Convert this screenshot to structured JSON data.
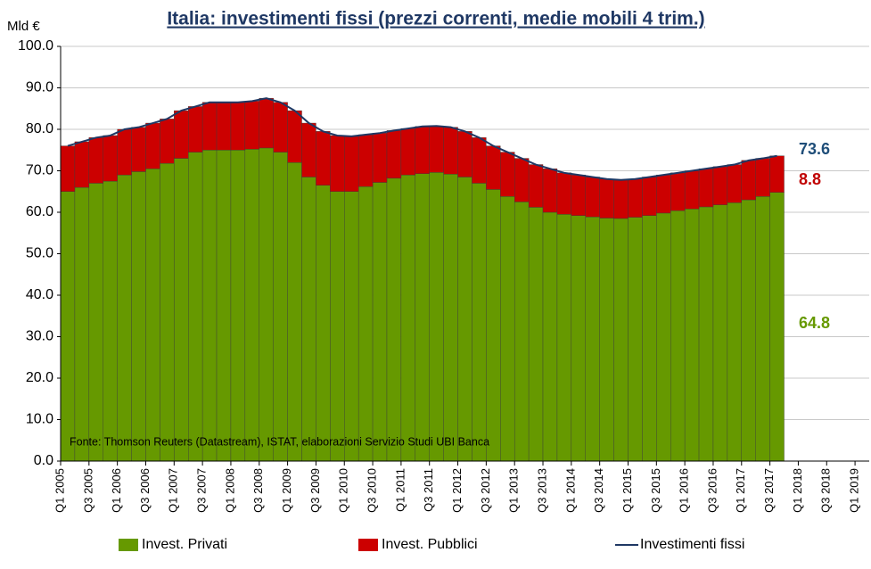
{
  "chart_data": {
    "type": "bar",
    "stacked": true,
    "title": "Italia: investimenti fissi (prezzi correnti, medie mobili 4 trim.)",
    "y_axis_label": "Mld €",
    "source": "Fonte: Thomson Reuters (Datastream), ISTAT,  elaborazioni Servizio Studi UBI Banca",
    "categories": [
      "Q1 2005",
      null,
      "Q3 2005",
      null,
      "Q1 2006",
      null,
      "Q3 2006",
      null,
      "Q1 2007",
      null,
      "Q3 2007",
      null,
      "Q1 2008",
      null,
      "Q3 2008",
      null,
      "Q1 2009",
      null,
      "Q3 2009",
      null,
      "Q1 2010",
      null,
      "Q3 2010",
      null,
      "Q1 2011",
      null,
      "Q3 2011",
      null,
      "Q1 2012",
      null,
      "Q3 2012",
      null,
      "Q1 2013",
      null,
      "Q3 2013",
      null,
      "Q1 2014",
      null,
      "Q3 2014",
      null,
      "Q1 2015",
      null,
      "Q3 2015",
      null,
      "Q1 2016",
      null,
      "Q3 2016",
      null,
      "Q1 2017",
      null,
      "Q3 2017",
      null,
      "Q1 2018",
      null,
      "Q3 2018",
      null,
      "Q1 2019"
    ],
    "series": [
      {
        "name": "Invest. Privati",
        "type": "bar",
        "color": "#669900",
        "values": [
          65,
          66,
          67,
          67.5,
          69,
          69.8,
          70.5,
          71.8,
          73,
          74.5,
          75,
          75,
          75,
          75.2,
          75.5,
          74.5,
          72,
          68.5,
          66.5,
          65,
          65,
          66.2,
          67.2,
          68.2,
          69,
          69.3,
          69.6,
          69.2,
          68.5,
          67,
          65.5,
          63.8,
          62.5,
          61.2,
          60,
          59.5,
          59.2,
          58.9,
          58.6,
          58.5,
          58.8,
          59.2,
          59.8,
          60.4,
          60.8,
          61.3,
          61.8,
          62.3,
          63,
          63.8,
          64.8,
          null,
          null,
          null,
          null,
          null,
          null
        ]
      },
      {
        "name": "Invest. Pubblici",
        "type": "bar",
        "color": "#cc0000",
        "values": [
          11,
          11,
          11,
          11,
          11,
          10.7,
          11,
          10.7,
          11.5,
          11,
          11.5,
          11.5,
          11.5,
          11.6,
          12,
          12,
          12.5,
          13,
          13,
          13.5,
          13.3,
          12.5,
          11.9,
          11.5,
          11.2,
          11.4,
          11.2,
          11.3,
          11,
          11,
          10.5,
          10.7,
          10.5,
          10.3,
          10.5,
          10,
          9.8,
          9.6,
          9.4,
          9.3,
          9.2,
          9.3,
          9.2,
          9.1,
          9.2,
          9.2,
          9.2,
          9.2,
          9.5,
          9.2,
          8.8,
          null,
          null,
          null,
          null,
          null,
          null
        ]
      },
      {
        "name": "Investimenti fissi",
        "type": "line",
        "color": "#1f3864",
        "values": [
          76,
          77,
          78,
          78.5,
          80,
          80.5,
          81.5,
          82.5,
          84.5,
          85.5,
          86.5,
          86.5,
          86.5,
          86.8,
          87.5,
          86.5,
          84.5,
          81.5,
          79.5,
          78.5,
          78.3,
          78.7,
          79.1,
          79.7,
          80.2,
          80.7,
          80.8,
          80.5,
          79.5,
          78,
          76,
          74.5,
          73,
          71.5,
          70.5,
          69.5,
          69,
          68.5,
          68,
          67.8,
          68,
          68.5,
          69,
          69.5,
          70,
          70.5,
          71,
          71.5,
          72.5,
          73,
          73.6,
          null,
          null,
          null,
          null,
          null,
          null
        ]
      }
    ],
    "end_label_colors": [
      "#669900",
      "#c00000",
      "#1f4e79"
    ],
    "ylim": [
      0,
      100
    ],
    "yticks": [
      {
        "value": 0,
        "label": "0.0"
      },
      {
        "value": 10,
        "label": "10.0"
      },
      {
        "value": 20,
        "label": "20.0"
      },
      {
        "value": 30,
        "label": "30.0"
      },
      {
        "value": 40,
        "label": "40.0"
      },
      {
        "value": 50,
        "label": "50.0"
      },
      {
        "value": 60,
        "label": "60.0"
      },
      {
        "value": 70,
        "label": "70.0"
      },
      {
        "value": 80,
        "label": "80.0"
      },
      {
        "value": 90,
        "label": "90.0"
      },
      {
        "value": 100,
        "label": "100.0"
      }
    ],
    "grid": true
  }
}
